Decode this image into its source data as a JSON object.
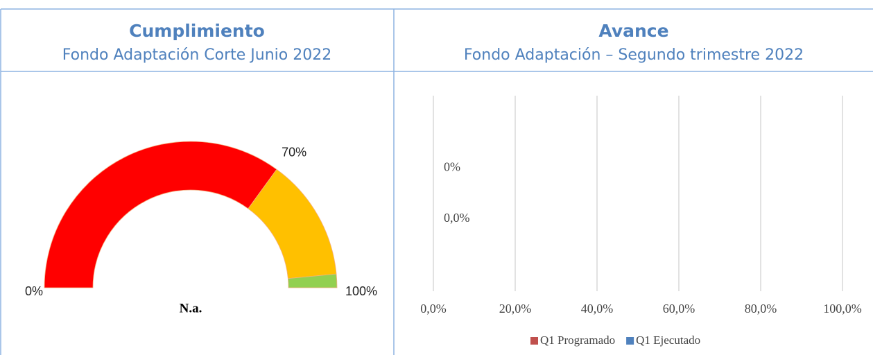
{
  "chart_data": [
    {
      "type": "gauge",
      "title": "Cumplimiento",
      "subtitle": "Fondo Adaptación Corte Junio 2022",
      "values": [
        70,
        27,
        3
      ],
      "colors": [
        "#ff0000",
        "#ffc000",
        "#92d050"
      ],
      "ticks": [
        {
          "value": 0,
          "label": "0%"
        },
        {
          "value": 70,
          "label": "70%"
        },
        {
          "value": 100,
          "label": "100%"
        }
      ],
      "center_label": "N.a."
    },
    {
      "type": "hbar",
      "title": "Avance",
      "subtitle": "Fondo Adaptación – Segundo trimestre 2022",
      "categories": [
        null
      ],
      "series": [
        {
          "name": "Q1 Programado",
          "color": "#c0504d",
          "values": [
            0
          ],
          "value_labels": [
            "0,0%"
          ]
        },
        {
          "name": "Q1 Ejecutado",
          "color": "#4f81bd",
          "values": [
            0
          ],
          "value_labels": [
            "0%"
          ]
        }
      ],
      "xlim": [
        0,
        100
      ],
      "xticks": [
        {
          "value": 0,
          "label": "0,0%"
        },
        {
          "value": 20,
          "label": "20,0%"
        },
        {
          "value": 40,
          "label": "40,0%"
        },
        {
          "value": 60,
          "label": "60,0%"
        },
        {
          "value": 80,
          "label": "80,0%"
        },
        {
          "value": 100,
          "label": "100,0%"
        }
      ],
      "grid": true,
      "legend": "bottom"
    }
  ]
}
